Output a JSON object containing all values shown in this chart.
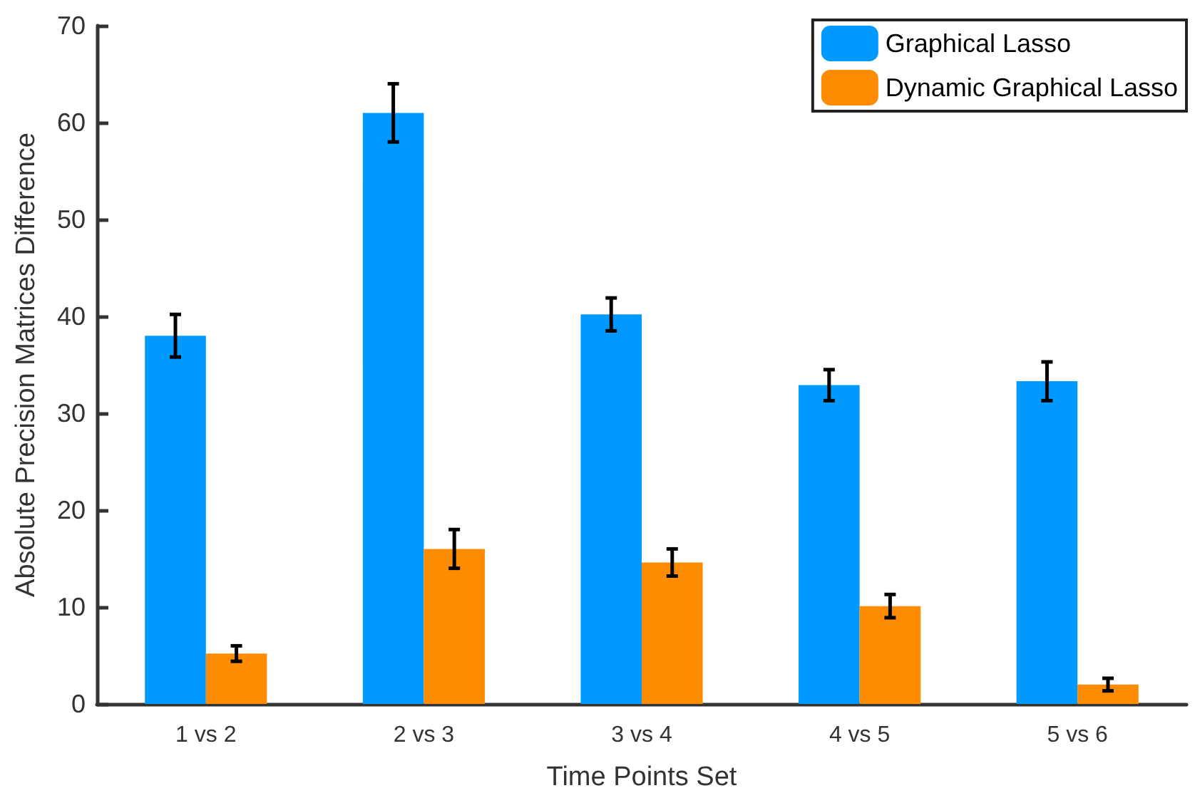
{
  "chart_data": {
    "type": "bar",
    "xlabel": "Time Points Set",
    "ylabel": "Absolute Precision Matrices Difference",
    "categories": [
      "1 vs 2",
      "2 vs 3",
      "3 vs 4",
      "4 vs 5",
      "5 vs 6"
    ],
    "series": [
      {
        "name": "Graphical Lasso",
        "color": "#0099ff",
        "values": [
          38,
          61,
          40.2,
          32.9,
          33.3
        ],
        "errors": [
          2.2,
          3,
          1.7,
          1.6,
          2
        ]
      },
      {
        "name": "Dynamic Graphical Lasso",
        "color": "#ff8c00",
        "values": [
          5.2,
          16,
          14.6,
          10.1,
          2
        ],
        "errors": [
          0.8,
          2,
          1.4,
          1.2,
          0.65
        ]
      }
    ],
    "ylim": [
      0,
      70
    ],
    "yticks": [
      0,
      10,
      20,
      30,
      40,
      50,
      60,
      70
    ],
    "grid": false,
    "legend": "top right"
  }
}
